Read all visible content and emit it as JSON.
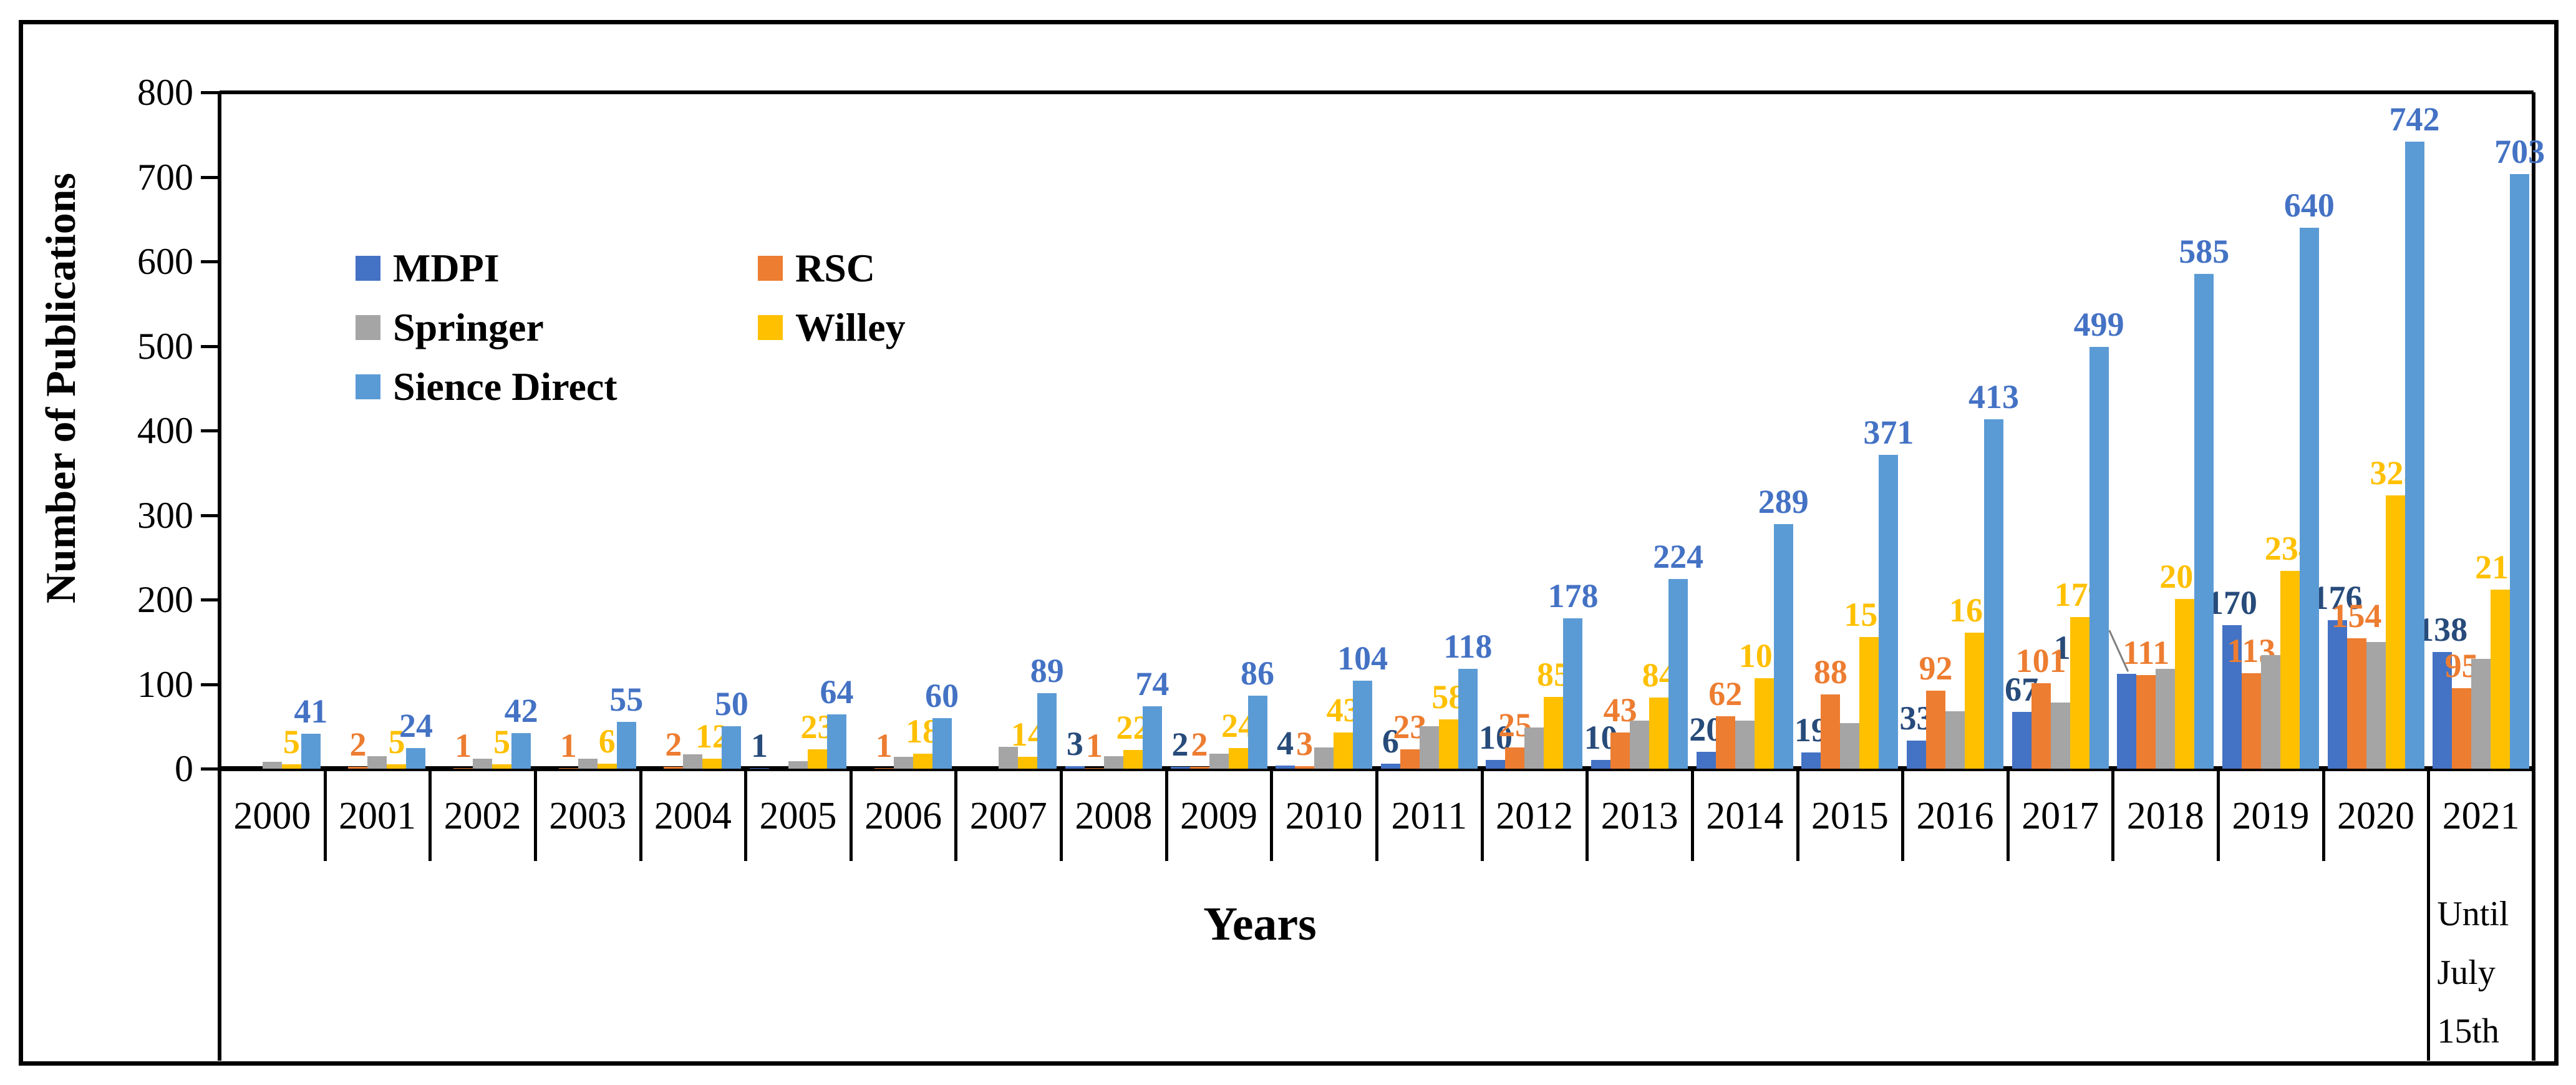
{
  "chart_data": {
    "type": "bar",
    "title": "",
    "xlabel": "Years",
    "ylabel": "Number of Publications",
    "ylim": [
      0,
      800
    ],
    "yticks": [
      0,
      100,
      200,
      300,
      400,
      500,
      600,
      700,
      800
    ],
    "grid": "off",
    "legend_position": "inside-top-left",
    "categories": [
      "2000",
      "2001",
      "2002",
      "2003",
      "2004",
      "2005",
      "2006",
      "2007",
      "2008",
      "2009",
      "2010",
      "2011",
      "2012",
      "2013",
      "2014",
      "2015",
      "2016",
      "2017",
      "2018",
      "2019",
      "2020",
      "2021"
    ],
    "final_category_note_lines": [
      "Until",
      "July",
      "15th"
    ],
    "series": [
      {
        "name": "MDPI",
        "color": "#4472C4",
        "label_color": "#274B7A",
        "show_labels": true,
        "values": [
          0,
          0,
          0,
          0,
          0,
          1,
          0,
          0,
          3,
          2,
          4,
          6,
          10,
          10,
          20,
          19,
          33,
          67,
          112,
          170,
          176,
          138
        ]
      },
      {
        "name": "RSC",
        "color": "#ED7D31",
        "label_color": "#ED7D31",
        "show_labels": true,
        "values": [
          0,
          2,
          1,
          1,
          2,
          0,
          1,
          0,
          1,
          2,
          3,
          23,
          25,
          43,
          62,
          88,
          92,
          101,
          111,
          113,
          154,
          95
        ]
      },
      {
        "name": "Springer",
        "color": "#A5A5A5",
        "label_color": "#A5A5A5",
        "show_labels": false,
        "values": [
          8,
          15,
          12,
          12,
          17,
          9,
          14,
          26,
          15,
          18,
          25,
          50,
          49,
          57,
          57,
          54,
          68,
          78,
          118,
          134,
          150,
          130
        ]
      },
      {
        "name": "Willey",
        "color": "#FFC000",
        "label_color": "#FFC000",
        "show_labels": true,
        "values": [
          5,
          5,
          5,
          6,
          12,
          23,
          18,
          14,
          22,
          24,
          43,
          58,
          85,
          84,
          107,
          156,
          161,
          179,
          201,
          234,
          323,
          212
        ]
      },
      {
        "name": "Sience Direct",
        "color": "#5B9BD5",
        "label_color": "#4472C4",
        "show_labels": true,
        "values": [
          41,
          24,
          42,
          55,
          50,
          64,
          60,
          89,
          74,
          86,
          104,
          118,
          178,
          224,
          289,
          371,
          413,
          499,
          585,
          640,
          742,
          703
        ]
      }
    ],
    "annotations": {
      "leader_line": {
        "series": "MDPI",
        "category": "2018",
        "color": "#7F7F7F"
      }
    }
  },
  "legend": {
    "columns": [
      [
        "MDPI",
        "Springer",
        "Sience Direct"
      ],
      [
        "RSC",
        "Willey"
      ]
    ]
  }
}
